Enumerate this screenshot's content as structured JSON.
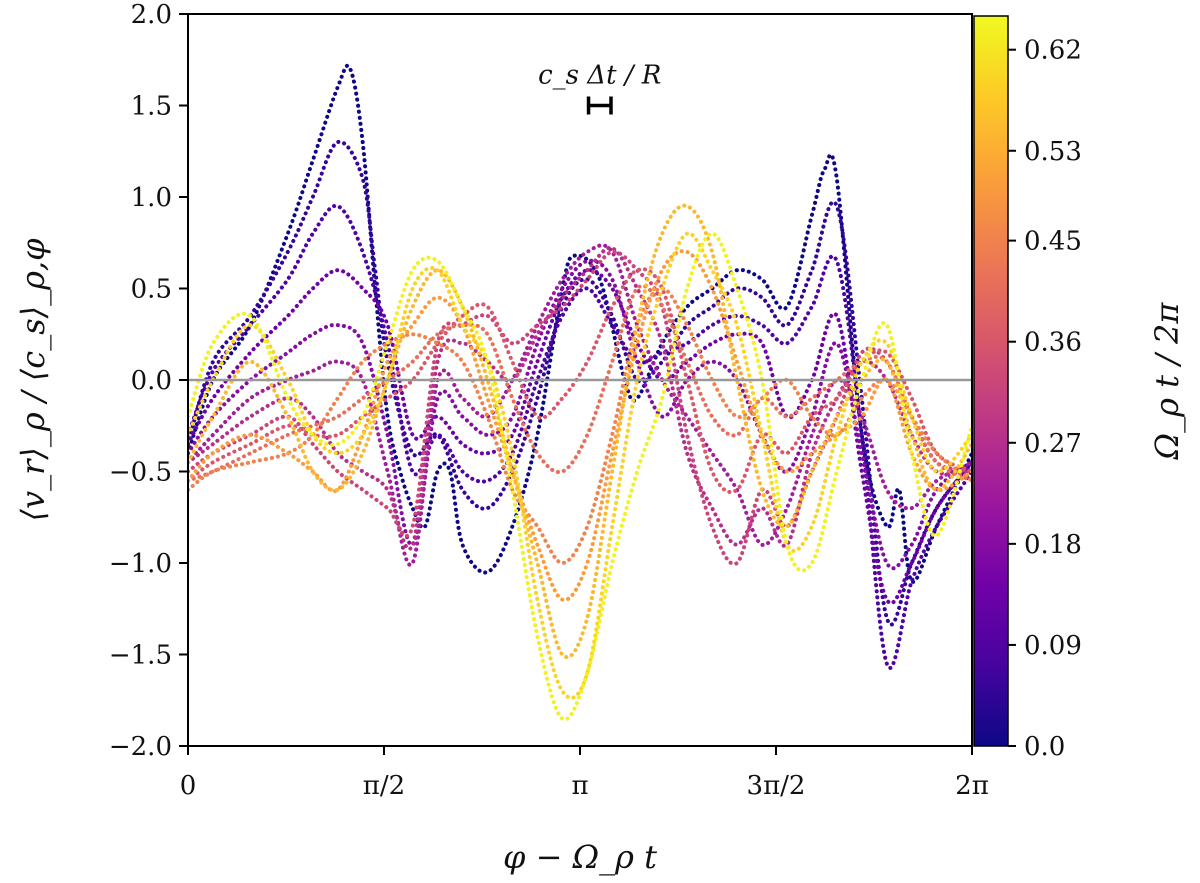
{
  "chart_data": {
    "type": "line",
    "title": "",
    "xlabel": "φ − Ω_ρ t",
    "ylabel": "⟨v_r⟩_ρ / ⟨c_s⟩_ρ,φ",
    "xlim": [
      0,
      6.2832
    ],
    "ylim": [
      -2.0,
      2.0
    ],
    "x_ticks": [
      {
        "value": 0,
        "label": "0"
      },
      {
        "value": 1.5708,
        "label": "π/2"
      },
      {
        "value": 3.1416,
        "label": "π"
      },
      {
        "value": 4.7124,
        "label": "3π/2"
      },
      {
        "value": 6.2832,
        "label": "2π"
      }
    ],
    "y_ticks": [
      {
        "value": 2.0,
        "label": "2.0"
      },
      {
        "value": 1.5,
        "label": "1.5"
      },
      {
        "value": 1.0,
        "label": "1.0"
      },
      {
        "value": 0.5,
        "label": "0.5"
      },
      {
        "value": 0.0,
        "label": "0.0"
      },
      {
        "value": -0.5,
        "label": "−0.5"
      },
      {
        "value": -1.0,
        "label": "−1.0"
      },
      {
        "value": -1.5,
        "label": "−1.5"
      },
      {
        "value": -2.0,
        "label": "−2.0"
      }
    ],
    "zero_line": 0,
    "annotation": {
      "label": "c_s Δt / R",
      "x": 3.3,
      "y": 1.5,
      "half_width": 0.09
    },
    "colorbar": {
      "label": "Ω_ρ t / 2π",
      "min": 0.0,
      "max": 0.65,
      "ticks": [
        {
          "value": 0.0,
          "label": "0.0"
        },
        {
          "value": 0.09,
          "label": "0.09"
        },
        {
          "value": 0.18,
          "label": "0.18"
        },
        {
          "value": 0.27,
          "label": "0.27"
        },
        {
          "value": 0.36,
          "label": "0.36"
        },
        {
          "value": 0.45,
          "label": "0.45"
        },
        {
          "value": 0.53,
          "label": "0.53"
        },
        {
          "value": 0.62,
          "label": "0.62"
        }
      ],
      "stops": [
        "#0d0887",
        "#46039f",
        "#7201a8",
        "#9c179e",
        "#bd3786",
        "#d8576b",
        "#ed7953",
        "#fb9f3a",
        "#fdca26",
        "#f0f921"
      ]
    },
    "series": [
      {
        "name": "Ωt/2π = 0.00",
        "time": 0.0,
        "x": [
          0,
          0.2,
          0.5,
          0.8,
          1.0,
          1.2,
          1.3,
          1.4,
          1.5,
          1.6,
          1.7,
          1.8,
          1.9,
          2.0,
          2.1,
          2.2,
          2.4,
          2.6,
          2.8,
          3.0,
          3.1,
          3.3,
          3.5,
          3.6,
          3.8,
          4.0,
          4.2,
          4.4,
          4.6,
          4.8,
          5.0,
          5.1,
          5.2,
          5.4,
          5.6,
          5.7,
          5.8,
          6.0,
          6.2832
        ],
        "y": [
          -0.4,
          0.0,
          0.3,
          0.8,
          1.2,
          1.6,
          1.7,
          1.3,
          0.5,
          -0.2,
          -0.5,
          -0.7,
          -0.8,
          -0.5,
          -0.5,
          -0.9,
          -1.05,
          -0.8,
          -0.3,
          0.5,
          0.68,
          0.55,
          0.0,
          -0.1,
          0.2,
          0.4,
          0.5,
          0.6,
          0.55,
          0.4,
          0.9,
          1.15,
          1.1,
          -0.3,
          -0.8,
          -0.6,
          -1.1,
          -0.8,
          -0.4
        ]
      },
      {
        "name": "Ωt/2π = 0.05",
        "time": 0.05,
        "x": [
          0,
          0.2,
          0.5,
          0.8,
          1.0,
          1.2,
          1.4,
          1.5,
          1.6,
          1.8,
          2.0,
          2.2,
          2.4,
          2.6,
          2.8,
          3.0,
          3.2,
          3.4,
          3.6,
          3.8,
          4.0,
          4.2,
          4.4,
          4.6,
          4.8,
          5.0,
          5.2,
          5.4,
          5.6,
          5.8,
          6.0,
          6.2832
        ],
        "y": [
          -0.35,
          0.1,
          0.35,
          0.7,
          1.0,
          1.3,
          1.1,
          0.6,
          0.1,
          -0.4,
          -0.3,
          -0.6,
          -0.7,
          -0.5,
          -0.1,
          0.4,
          0.55,
          0.35,
          0.0,
          0.1,
          0.3,
          0.4,
          0.5,
          0.45,
          0.3,
          0.6,
          0.95,
          -0.1,
          -1.3,
          -1.0,
          -0.7,
          -0.45
        ]
      },
      {
        "name": "Ωt/2π = 0.09",
        "time": 0.09,
        "x": [
          0,
          0.2,
          0.5,
          0.8,
          1.0,
          1.2,
          1.4,
          1.6,
          1.8,
          2.0,
          2.2,
          2.4,
          2.6,
          2.8,
          3.0,
          3.2,
          3.4,
          3.6,
          3.8,
          4.0,
          4.2,
          4.4,
          4.6,
          4.8,
          5.0,
          5.2,
          5.4,
          5.6,
          5.8,
          6.0,
          6.2832
        ],
        "y": [
          -0.3,
          0.05,
          0.3,
          0.55,
          0.8,
          0.95,
          0.7,
          0.2,
          -0.5,
          -0.3,
          -0.5,
          -0.55,
          -0.4,
          0.0,
          0.35,
          0.5,
          0.3,
          0.1,
          0.15,
          0.2,
          0.3,
          0.35,
          0.3,
          0.2,
          0.4,
          0.65,
          -0.3,
          -1.55,
          -1.1,
          -0.8,
          -0.5
        ]
      },
      {
        "name": "Ωt/2π = 0.14",
        "time": 0.14,
        "x": [
          0,
          0.2,
          0.5,
          0.8,
          1.0,
          1.2,
          1.4,
          1.6,
          1.8,
          2.0,
          2.2,
          2.4,
          2.6,
          2.8,
          3.0,
          3.2,
          3.4,
          3.6,
          3.8,
          4.0,
          4.2,
          4.4,
          4.6,
          4.8,
          5.0,
          5.2,
          5.4,
          5.6,
          5.8,
          6.0,
          6.2832
        ],
        "y": [
          -0.35,
          -0.1,
          0.15,
          0.35,
          0.5,
          0.6,
          0.5,
          0.3,
          -0.3,
          -0.2,
          -0.35,
          -0.4,
          -0.3,
          0.1,
          0.45,
          0.6,
          0.5,
          0.2,
          0.0,
          0.1,
          0.2,
          0.25,
          0.2,
          -0.2,
          0.0,
          0.35,
          -0.5,
          -1.2,
          -1.0,
          -0.7,
          -0.45
        ]
      },
      {
        "name": "Ωt/2π = 0.18",
        "time": 0.18,
        "x": [
          0,
          0.2,
          0.5,
          0.8,
          1.0,
          1.2,
          1.4,
          1.6,
          1.8,
          2.0,
          2.2,
          2.4,
          2.6,
          2.8,
          3.0,
          3.2,
          3.4,
          3.6,
          3.8,
          4.0,
          4.2,
          4.4,
          4.6,
          4.8,
          5.0,
          5.2,
          5.4,
          5.6,
          5.8,
          6.0,
          6.2832
        ],
        "y": [
          -0.4,
          -0.2,
          0.0,
          0.15,
          0.25,
          0.3,
          0.2,
          -0.3,
          -0.9,
          -0.1,
          -0.2,
          -0.3,
          -0.2,
          0.2,
          0.5,
          0.65,
          0.55,
          0.1,
          -0.2,
          0.0,
          0.1,
          0.0,
          -0.3,
          -0.5,
          -0.2,
          0.2,
          -0.4,
          -1.0,
          -0.9,
          -0.6,
          -0.45
        ]
      },
      {
        "name": "Ωt/2π = 0.23",
        "time": 0.23,
        "x": [
          0,
          0.2,
          0.5,
          0.8,
          1.0,
          1.2,
          1.4,
          1.6,
          1.8,
          2.0,
          2.2,
          2.4,
          2.6,
          2.8,
          3.0,
          3.2,
          3.4,
          3.6,
          3.8,
          4.0,
          4.2,
          4.4,
          4.6,
          4.8,
          5.0,
          5.2,
          5.4,
          5.6,
          5.8,
          6.0,
          6.2832
        ],
        "y": [
          -0.45,
          -0.3,
          -0.1,
          0.0,
          0.05,
          0.1,
          0.0,
          -0.5,
          -1.0,
          0.0,
          -0.1,
          -0.2,
          0.0,
          0.3,
          0.55,
          0.7,
          0.7,
          0.3,
          0.0,
          -0.2,
          -0.4,
          -0.6,
          -0.9,
          -0.7,
          -0.3,
          0.0,
          -0.2,
          -0.6,
          -0.7,
          -0.55,
          -0.45
        ]
      },
      {
        "name": "Ωt/2π = 0.27",
        "time": 0.27,
        "x": [
          0,
          0.2,
          0.5,
          0.8,
          1.0,
          1.2,
          1.4,
          1.6,
          1.8,
          2.0,
          2.2,
          2.4,
          2.6,
          2.8,
          3.0,
          3.2,
          3.4,
          3.6,
          3.8,
          4.0,
          4.2,
          4.4,
          4.6,
          4.8,
          5.0,
          5.2,
          5.4,
          5.6,
          5.8,
          6.0,
          6.2832
        ],
        "y": [
          -0.45,
          -0.35,
          -0.2,
          -0.1,
          -0.2,
          -0.4,
          -0.5,
          -0.6,
          -0.9,
          0.1,
          0.2,
          0.1,
          0.0,
          0.25,
          0.45,
          0.6,
          0.72,
          0.5,
          0.2,
          -0.4,
          -0.7,
          -0.9,
          -0.7,
          -0.9,
          -0.4,
          -0.1,
          0.1,
          0.0,
          -0.3,
          -0.5,
          -0.5
        ]
      },
      {
        "name": "Ωt/2π = 0.32",
        "time": 0.32,
        "x": [
          0,
          0.2,
          0.5,
          0.8,
          1.0,
          1.2,
          1.4,
          1.6,
          1.8,
          2.0,
          2.2,
          2.4,
          2.6,
          2.8,
          3.0,
          3.2,
          3.4,
          3.6,
          3.8,
          4.0,
          4.2,
          4.4,
          4.6,
          4.8,
          5.0,
          5.2,
          5.4,
          5.6,
          5.8,
          6.0,
          6.2832
        ],
        "y": [
          -0.5,
          -0.4,
          -0.3,
          -0.2,
          -0.35,
          -0.5,
          -0.6,
          -0.7,
          -0.8,
          0.2,
          0.3,
          0.35,
          0.2,
          0.3,
          0.4,
          0.55,
          0.7,
          0.6,
          0.4,
          -0.3,
          -0.8,
          -1.0,
          -0.6,
          -0.8,
          -0.5,
          -0.2,
          0.15,
          0.1,
          -0.2,
          -0.45,
          -0.5
        ]
      },
      {
        "name": "Ωt/2π = 0.36",
        "time": 0.36,
        "x": [
          0,
          0.2,
          0.5,
          0.8,
          1.0,
          1.2,
          1.4,
          1.6,
          1.8,
          2.0,
          2.2,
          2.4,
          2.6,
          2.8,
          3.0,
          3.2,
          3.4,
          3.6,
          3.8,
          4.0,
          4.2,
          4.4,
          4.6,
          4.8,
          5.0,
          5.2,
          5.4,
          5.6,
          5.8,
          6.0,
          6.2832
        ],
        "y": [
          -0.55,
          -0.45,
          -0.35,
          -0.25,
          -0.3,
          -0.3,
          -0.2,
          -0.1,
          0.0,
          0.2,
          0.35,
          0.4,
          0.1,
          -0.2,
          -0.1,
          0.1,
          0.4,
          0.6,
          0.5,
          0.0,
          -0.5,
          -0.6,
          -0.3,
          -0.4,
          -0.2,
          -0.1,
          0.1,
          0.15,
          -0.1,
          -0.4,
          -0.5
        ]
      },
      {
        "name": "Ωt/2π = 0.41",
        "time": 0.41,
        "x": [
          0,
          0.2,
          0.5,
          0.8,
          1.0,
          1.2,
          1.4,
          1.6,
          1.8,
          2.0,
          2.2,
          2.4,
          2.6,
          2.8,
          3.0,
          3.2,
          3.4,
          3.6,
          3.8,
          4.0,
          4.2,
          4.4,
          4.6,
          4.8,
          5.0,
          5.2,
          5.4,
          5.6,
          5.8,
          6.0,
          6.2832
        ],
        "y": [
          -0.55,
          -0.5,
          -0.4,
          -0.3,
          -0.25,
          -0.2,
          -0.1,
          0.0,
          0.1,
          0.25,
          0.3,
          0.25,
          -0.1,
          -0.4,
          -0.5,
          -0.3,
          0.1,
          0.5,
          0.4,
          0.1,
          -0.2,
          -0.3,
          -0.1,
          -0.2,
          -0.1,
          0.0,
          0.1,
          0.1,
          -0.2,
          -0.45,
          -0.55
        ]
      },
      {
        "name": "Ωt/2π = 0.45",
        "time": 0.45,
        "x": [
          0,
          0.2,
          0.5,
          0.8,
          1.0,
          1.2,
          1.4,
          1.6,
          1.8,
          2.0,
          2.2,
          2.4,
          2.6,
          2.8,
          3.0,
          3.2,
          3.4,
          3.6,
          3.8,
          4.0,
          4.2,
          4.4,
          4.6,
          4.8,
          5.0,
          5.2,
          5.4,
          5.6,
          5.8,
          6.0,
          6.2832
        ],
        "y": [
          -0.6,
          -0.5,
          -0.45,
          -0.4,
          -0.3,
          -0.1,
          0.1,
          0.2,
          0.25,
          0.2,
          0.1,
          -0.2,
          -0.6,
          -0.8,
          -1.0,
          -0.8,
          -0.3,
          0.3,
          0.5,
          0.3,
          0.0,
          -0.2,
          -0.1,
          0.0,
          -0.2,
          -0.3,
          -0.1,
          0.0,
          -0.2,
          -0.4,
          -0.55
        ]
      },
      {
        "name": "Ωt/2π = 0.50",
        "time": 0.5,
        "x": [
          0,
          0.2,
          0.5,
          0.8,
          1.0,
          1.2,
          1.4,
          1.6,
          1.8,
          2.0,
          2.2,
          2.4,
          2.6,
          2.8,
          3.0,
          3.2,
          3.4,
          3.6,
          3.8,
          4.0,
          4.2,
          4.4,
          4.6,
          4.8,
          5.0,
          5.2,
          5.4,
          5.6,
          5.8,
          6.0,
          6.2832
        ],
        "y": [
          -0.55,
          -0.4,
          -0.3,
          -0.4,
          -0.5,
          -0.6,
          -0.3,
          0.1,
          0.3,
          0.45,
          0.3,
          -0.1,
          -0.5,
          -0.9,
          -1.2,
          -1.0,
          -0.4,
          0.2,
          0.6,
          0.7,
          0.5,
          0.1,
          -0.3,
          -0.5,
          -0.4,
          -0.3,
          -0.2,
          0.0,
          -0.4,
          -0.6,
          -0.5
        ]
      },
      {
        "name": "Ωt/2π = 0.55",
        "time": 0.55,
        "x": [
          0,
          0.2,
          0.5,
          0.8,
          1.0,
          1.2,
          1.4,
          1.6,
          1.8,
          2.0,
          2.2,
          2.4,
          2.6,
          2.8,
          3.0,
          3.2,
          3.4,
          3.6,
          3.8,
          4.0,
          4.2,
          4.4,
          4.6,
          4.8,
          5.0,
          5.2,
          5.4,
          5.6,
          5.8,
          6.0,
          6.2832
        ],
        "y": [
          -0.45,
          -0.2,
          0.1,
          -0.2,
          -0.5,
          -0.6,
          -0.4,
          0.0,
          0.4,
          0.6,
          0.4,
          0.0,
          -0.5,
          -1.0,
          -1.5,
          -1.3,
          -0.5,
          0.3,
          0.8,
          0.95,
          0.7,
          0.0,
          -0.6,
          -0.8,
          -0.5,
          -0.2,
          0.0,
          0.1,
          -0.3,
          -0.6,
          -0.35
        ]
      },
      {
        "name": "Ωt/2π = 0.59",
        "time": 0.59,
        "x": [
          0,
          0.2,
          0.5,
          0.8,
          1.0,
          1.2,
          1.4,
          1.6,
          1.8,
          2.0,
          2.2,
          2.4,
          2.6,
          2.8,
          3.0,
          3.2,
          3.4,
          3.6,
          3.8,
          4.0,
          4.2,
          4.4,
          4.6,
          4.8,
          5.0,
          5.2,
          5.4,
          5.6,
          5.8,
          6.0,
          6.2832
        ],
        "y": [
          -0.3,
          0.0,
          0.3,
          0.0,
          -0.3,
          -0.4,
          -0.3,
          0.0,
          0.5,
          0.6,
          0.3,
          0.1,
          -0.4,
          -1.2,
          -1.7,
          -1.6,
          -0.8,
          0.0,
          0.5,
          0.8,
          0.6,
          0.3,
          -0.3,
          -0.9,
          -0.8,
          -0.3,
          0.1,
          0.2,
          -0.2,
          -0.5,
          -0.3
        ]
      },
      {
        "name": "Ωt/2π = 0.64",
        "time": 0.64,
        "x": [
          0,
          0.2,
          0.5,
          0.8,
          1.0,
          1.2,
          1.4,
          1.6,
          1.8,
          2.0,
          2.2,
          2.4,
          2.6,
          2.8,
          3.0,
          3.2,
          3.4,
          3.6,
          3.8,
          4.0,
          4.2,
          4.4,
          4.6,
          4.8,
          5.0,
          5.2,
          5.4,
          5.6,
          5.8,
          6.0,
          6.2832
        ],
        "y": [
          -0.2,
          0.2,
          0.35,
          -0.1,
          -0.3,
          -0.35,
          -0.2,
          0.2,
          0.6,
          0.65,
          0.4,
          0.1,
          -0.6,
          -1.4,
          -1.85,
          -1.6,
          -1.0,
          -0.5,
          -0.1,
          0.5,
          0.8,
          0.5,
          0.0,
          -0.9,
          -1.0,
          -0.5,
          0.0,
          0.3,
          -0.4,
          -0.85,
          -0.25
        ]
      }
    ]
  }
}
